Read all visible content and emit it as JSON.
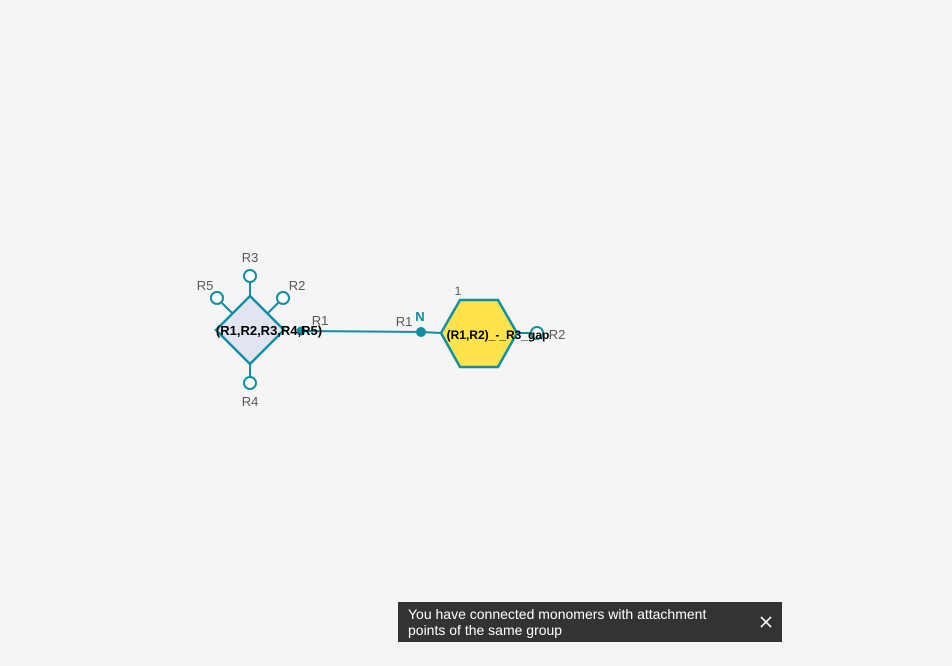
{
  "colors": {
    "bond": "#0f8fa3",
    "chem_fill": "#e2e5ef",
    "peptide_fill": "#ffe34d",
    "label": "#585858",
    "snackbar_bg": "#333333"
  },
  "chem_monomer": {
    "name": "(R1,R2,R3,R4,R5)",
    "attachment_points": [
      "R1",
      "R2",
      "R3",
      "R4",
      "R5"
    ]
  },
  "peptide_monomer": {
    "name": "(R1,R2)_-_R3_gap",
    "sequence_number": "1",
    "left_ap": "R1",
    "right_ap": "R2",
    "terminal_label": "N"
  },
  "notification": {
    "message": "You have connected monomers with attachment points of the same group",
    "close_icon": "close-icon"
  }
}
